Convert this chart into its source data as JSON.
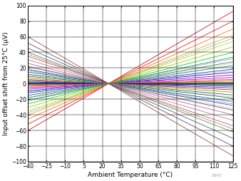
{
  "xlabel": "Ambient Temperature (°C)",
  "ylabel": "Input offset shift from 25°C (µV)",
  "xmin": -40,
  "xmax": 125,
  "ymin": -100,
  "ymax": 100,
  "pivot_temp": 25,
  "xticks": [
    -40,
    -25,
    -10,
    5,
    20,
    35,
    50,
    65,
    80,
    95,
    110,
    125
  ],
  "yticks": [
    -100,
    -80,
    -60,
    -40,
    -20,
    0,
    20,
    40,
    60,
    80,
    100
  ],
  "slopes": [
    0.925,
    0.8,
    0.7,
    0.62,
    0.54,
    0.47,
    0.4,
    0.34,
    0.28,
    0.23,
    0.185,
    0.145,
    0.11,
    0.08,
    0.055,
    0.035,
    0.018,
    0.008,
    0.002,
    -0.002,
    -0.008,
    -0.018,
    -0.035,
    -0.055,
    -0.08,
    -0.11,
    -0.145,
    -0.185,
    -0.23,
    -0.28,
    -0.34,
    -0.4,
    -0.47,
    -0.54,
    -0.62,
    -0.7,
    -0.8,
    -0.925,
    0.58,
    -0.58,
    0.26,
    -0.26,
    0.165,
    -0.165,
    0.06,
    -0.06,
    0.32,
    -0.32
  ],
  "colors": [
    "#CC0000",
    "#FF0000",
    "#FF6600",
    "#FF9900",
    "#CCCC00",
    "#99CC00",
    "#00CC00",
    "#00AA44",
    "#008866",
    "#006688",
    "#0044AA",
    "#0000CC",
    "#6600CC",
    "#AA00AA",
    "#CC0066",
    "#CC3300",
    "#996600",
    "#668800",
    "#008800",
    "#008888",
    "#004488",
    "#003388",
    "#440088",
    "#880066",
    "#AA0044",
    "#888800",
    "#336600",
    "#006633",
    "#004466",
    "#334488",
    "#663399",
    "#996688",
    "#CC6699",
    "#996633",
    "#558833",
    "#335566",
    "#663366",
    "#884422",
    "#33AA99",
    "#AA3366",
    "#AACC33",
    "#3366CC",
    "#FF66AA",
    "#AAAAFF",
    "#FFAACC",
    "#44CCAA",
    "#AA44CC",
    "#CCAA44",
    "#44AACC",
    "#CCAAFF"
  ],
  "line_styles": [
    "-",
    "-",
    "-",
    "-",
    "-",
    "-",
    "-",
    "-",
    "-",
    "-",
    "-",
    "-",
    "-",
    "-",
    "-",
    "-",
    "-",
    "-",
    "-",
    "-",
    "-",
    "-",
    "-",
    "-",
    "-",
    "-",
    "-",
    "-",
    "-",
    "-",
    "-",
    "-",
    "-",
    "-",
    "-",
    "-",
    "-",
    "-",
    "--",
    "--",
    "--",
    "--",
    "--",
    "--",
    "--",
    "--",
    "--",
    "--"
  ],
  "watermark": "D045",
  "background_color": "#FFFFFF"
}
